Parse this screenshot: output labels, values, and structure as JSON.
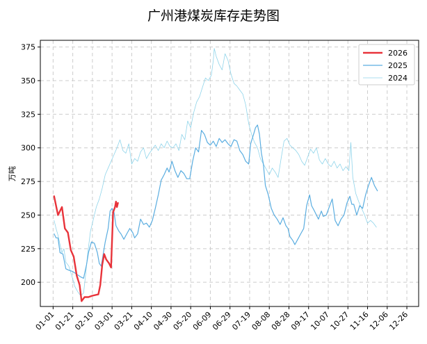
{
  "chart_data": {
    "type": "line",
    "title": "广州港煤炭库存走势图",
    "xlabel": "",
    "ylabel": "万吨",
    "x_ticks": [
      "01-01",
      "01-21",
      "02-10",
      "03-01",
      "03-21",
      "04-10",
      "04-30",
      "05-20",
      "06-09",
      "06-29",
      "07-19",
      "08-08",
      "08-28",
      "09-17",
      "10-07",
      "10-27",
      "11-16",
      "12-06",
      "12-26"
    ],
    "y_ticks": [
      200,
      225,
      250,
      275,
      300,
      325,
      350,
      375
    ],
    "xlim_day": [
      -13,
      372
    ],
    "ylim": [
      182,
      380
    ],
    "grid": true,
    "legend_position": "top-right",
    "series": [
      {
        "name": "2026",
        "color": "#e8333a",
        "points": [
          [
            1,
            264
          ],
          [
            5,
            250
          ],
          [
            9,
            256
          ],
          [
            12,
            240
          ],
          [
            15,
            237
          ],
          [
            18,
            224
          ],
          [
            21,
            219
          ],
          [
            24,
            205
          ],
          [
            27,
            198
          ],
          [
            29,
            186
          ],
          [
            32,
            189
          ],
          [
            36,
            189
          ],
          [
            40,
            190
          ],
          [
            46,
            191
          ],
          [
            48,
            198
          ],
          [
            50,
            213
          ],
          [
            52,
            221
          ],
          [
            54,
            217
          ],
          [
            57,
            214
          ],
          [
            59,
            211
          ],
          [
            61,
            252
          ],
          [
            63,
            256
          ],
          [
            64,
            260
          ],
          [
            65,
            256
          ],
          [
            66,
            259
          ]
        ]
      },
      {
        "name": "2025",
        "color": "#5aade0",
        "points": [
          [
            1,
            236
          ],
          [
            3,
            233
          ],
          [
            5,
            233
          ],
          [
            7,
            222
          ],
          [
            10,
            221
          ],
          [
            13,
            210
          ],
          [
            16,
            209
          ],
          [
            20,
            208
          ],
          [
            24,
            206
          ],
          [
            28,
            204
          ],
          [
            31,
            203
          ],
          [
            34,
            213
          ],
          [
            36,
            222
          ],
          [
            39,
            230
          ],
          [
            42,
            229
          ],
          [
            45,
            222
          ],
          [
            47,
            214
          ],
          [
            49,
            212
          ],
          [
            51,
            221
          ],
          [
            53,
            230
          ],
          [
            56,
            240
          ],
          [
            58,
            253
          ],
          [
            60,
            255
          ],
          [
            62,
            252
          ],
          [
            64,
            242
          ],
          [
            67,
            238
          ],
          [
            69,
            236
          ],
          [
            72,
            232
          ],
          [
            75,
            236
          ],
          [
            78,
            240
          ],
          [
            81,
            237
          ],
          [
            83,
            233
          ],
          [
            86,
            236
          ],
          [
            89,
            247
          ],
          [
            92,
            243
          ],
          [
            95,
            244
          ],
          [
            98,
            241
          ],
          [
            101,
            246
          ],
          [
            104,
            255
          ],
          [
            107,
            265
          ],
          [
            110,
            276
          ],
          [
            113,
            280
          ],
          [
            116,
            285
          ],
          [
            118,
            282
          ],
          [
            121,
            290
          ],
          [
            124,
            283
          ],
          [
            127,
            278
          ],
          [
            130,
            283
          ],
          [
            133,
            281
          ],
          [
            136,
            277
          ],
          [
            139,
            277
          ],
          [
            142,
            290
          ],
          [
            145,
            300
          ],
          [
            148,
            297
          ],
          [
            151,
            313
          ],
          [
            154,
            310
          ],
          [
            157,
            304
          ],
          [
            160,
            302
          ],
          [
            163,
            305
          ],
          [
            166,
            301
          ],
          [
            169,
            307
          ],
          [
            172,
            304
          ],
          [
            175,
            306
          ],
          [
            178,
            303
          ],
          [
            181,
            301
          ],
          [
            184,
            306
          ],
          [
            187,
            305
          ],
          [
            190,
            298
          ],
          [
            193,
            295
          ],
          [
            196,
            290
          ],
          [
            199,
            288
          ],
          [
            201,
            303
          ],
          [
            204,
            310
          ],
          [
            206,
            315
          ],
          [
            208,
            317
          ],
          [
            210,
            310
          ],
          [
            212,
            296
          ],
          [
            214,
            288
          ],
          [
            216,
            272
          ],
          [
            219,
            265
          ],
          [
            222,
            255
          ],
          [
            225,
            250
          ],
          [
            228,
            247
          ],
          [
            231,
            243
          ],
          [
            234,
            248
          ],
          [
            237,
            242
          ],
          [
            239,
            240
          ],
          [
            241,
            234
          ],
          [
            244,
            231
          ],
          [
            246,
            228
          ],
          [
            249,
            232
          ],
          [
            252,
            236
          ],
          [
            255,
            240
          ],
          [
            258,
            257
          ],
          [
            261,
            265
          ],
          [
            263,
            257
          ],
          [
            266,
            253
          ],
          [
            268,
            250
          ],
          [
            270,
            247
          ],
          [
            273,
            253
          ],
          [
            275,
            249
          ],
          [
            278,
            250
          ],
          [
            281,
            256
          ],
          [
            284,
            262
          ],
          [
            287,
            246
          ],
          [
            290,
            242
          ],
          [
            293,
            247
          ],
          [
            296,
            250
          ],
          [
            299,
            259
          ],
          [
            302,
            264
          ],
          [
            304,
            258
          ],
          [
            306,
            258
          ],
          [
            309,
            250
          ],
          [
            312,
            257
          ],
          [
            315,
            255
          ],
          [
            318,
            265
          ],
          [
            321,
            272
          ],
          [
            324,
            278
          ],
          [
            327,
            272
          ],
          [
            330,
            268
          ]
        ]
      },
      {
        "name": "2024",
        "color": "#8fd4ea",
        "points": [
          [
            1,
            246
          ],
          [
            3,
            240
          ],
          [
            5,
            235
          ],
          [
            7,
            228
          ],
          [
            9,
            222
          ],
          [
            11,
            225
          ],
          [
            13,
            215
          ],
          [
            16,
            212
          ],
          [
            19,
            205
          ],
          [
            22,
            197
          ],
          [
            25,
            193
          ],
          [
            28,
            190
          ],
          [
            31,
            192
          ],
          [
            33,
            205
          ],
          [
            35,
            220
          ],
          [
            38,
            238
          ],
          [
            41,
            247
          ],
          [
            44,
            256
          ],
          [
            47,
            262
          ],
          [
            50,
            270
          ],
          [
            53,
            280
          ],
          [
            56,
            285
          ],
          [
            59,
            290
          ],
          [
            62,
            295
          ],
          [
            65,
            300
          ],
          [
            68,
            306
          ],
          [
            71,
            298
          ],
          [
            74,
            296
          ],
          [
            77,
            303
          ],
          [
            80,
            288
          ],
          [
            83,
            292
          ],
          [
            86,
            290
          ],
          [
            89,
            297
          ],
          [
            92,
            300
          ],
          [
            95,
            292
          ],
          [
            98,
            296
          ],
          [
            101,
            299
          ],
          [
            104,
            302
          ],
          [
            107,
            298
          ],
          [
            110,
            303
          ],
          [
            113,
            300
          ],
          [
            116,
            305
          ],
          [
            119,
            301
          ],
          [
            122,
            300
          ],
          [
            125,
            303
          ],
          [
            128,
            298
          ],
          [
            131,
            310
          ],
          [
            134,
            306
          ],
          [
            137,
            320
          ],
          [
            140,
            315
          ],
          [
            143,
            326
          ],
          [
            146,
            334
          ],
          [
            149,
            338
          ],
          [
            152,
            345
          ],
          [
            155,
            352
          ],
          [
            158,
            350
          ],
          [
            161,
            354
          ],
          [
            163,
            365
          ],
          [
            164,
            374
          ],
          [
            166,
            368
          ],
          [
            169,
            362
          ],
          [
            172,
            358
          ],
          [
            175,
            370
          ],
          [
            178,
            365
          ],
          [
            181,
            355
          ],
          [
            184,
            348
          ],
          [
            187,
            346
          ],
          [
            190,
            343
          ],
          [
            193,
            340
          ],
          [
            196,
            332
          ],
          [
            199,
            318
          ],
          [
            202,
            310
          ],
          [
            205,
            304
          ],
          [
            208,
            300
          ],
          [
            211,
            292
          ],
          [
            214,
            288
          ],
          [
            217,
            284
          ],
          [
            220,
            280
          ],
          [
            223,
            285
          ],
          [
            226,
            282
          ],
          [
            229,
            278
          ],
          [
            232,
            292
          ],
          [
            235,
            305
          ],
          [
            238,
            307
          ],
          [
            241,
            302
          ],
          [
            244,
            300
          ],
          [
            247,
            298
          ],
          [
            250,
            295
          ],
          [
            253,
            290
          ],
          [
            256,
            287
          ],
          [
            259,
            293
          ],
          [
            262,
            299
          ],
          [
            265,
            296
          ],
          [
            268,
            300
          ],
          [
            271,
            291
          ],
          [
            274,
            288
          ],
          [
            277,
            292
          ],
          [
            280,
            288
          ],
          [
            283,
            286
          ],
          [
            286,
            290
          ],
          [
            289,
            285
          ],
          [
            292,
            288
          ],
          [
            295,
            283
          ],
          [
            298,
            286
          ],
          [
            301,
            283
          ],
          [
            303,
            304
          ],
          [
            305,
            278
          ],
          [
            308,
            266
          ],
          [
            311,
            260
          ],
          [
            314,
            255
          ],
          [
            317,
            250
          ],
          [
            320,
            244
          ],
          [
            323,
            246
          ],
          [
            326,
            244
          ],
          [
            329,
            241
          ]
        ]
      }
    ]
  }
}
